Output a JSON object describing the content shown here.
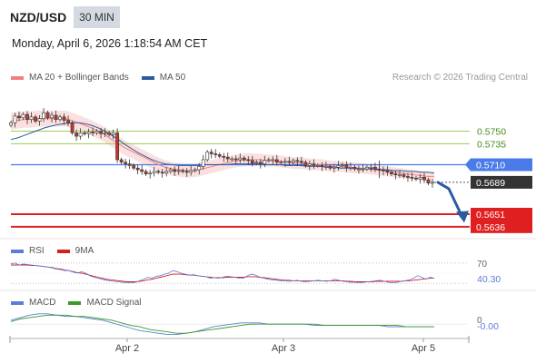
{
  "header": {
    "symbol": "NZD/USD",
    "interval": "30 MIN",
    "datetime": "Monday, April 6, 2026 1:18:54 AM CET"
  },
  "copyright": "Research © 2026 Trading Central",
  "colors": {
    "bollinger": "#f08080",
    "ma50": "#2c5aa0",
    "resistance": "#9acd59",
    "pivot": "#4a7be8",
    "support": "#e02020",
    "current": "#333333",
    "rsi": "#5b7fd6",
    "rsi_ma": "#d62020",
    "macd": "#5b7fd6",
    "macd_signal": "#3a9a2a",
    "up_candle": "#ffffff",
    "down_candle": "#c0392b"
  },
  "chart_data": [
    {
      "type": "candlestick",
      "legend": [
        {
          "name": "MA 20 + Bollinger Bands",
          "color": "#f08080"
        },
        {
          "name": "MA 50",
          "color": "#2c5aa0"
        }
      ],
      "ylim": [
        0.5625,
        0.5795
      ],
      "levels": [
        {
          "value": 0.575,
          "label": "0.5750",
          "kind": "resistance"
        },
        {
          "value": 0.5735,
          "label": "0.5735",
          "kind": "resistance"
        },
        {
          "value": 0.571,
          "label": "0.5710",
          "kind": "pivot"
        },
        {
          "value": 0.5689,
          "label": "0.5689",
          "kind": "current"
        },
        {
          "value": 0.5651,
          "label": "0.5651",
          "kind": "support"
        },
        {
          "value": 0.5636,
          "label": "0.5636",
          "kind": "support"
        }
      ],
      "x_ticks": [
        "Apr 2",
        "Apr 3",
        "Apr 5"
      ],
      "close_path": [
        0.576,
        0.5768,
        0.5766,
        0.577,
        0.5764,
        0.5767,
        0.5762,
        0.5765,
        0.5772,
        0.5766,
        0.5769,
        0.5764,
        0.5767,
        0.5763,
        0.576,
        0.5748,
        0.5744,
        0.5748,
        0.5747,
        0.5749,
        0.5748,
        0.575,
        0.5747,
        0.5748,
        0.5746,
        0.5748,
        0.5716,
        0.5713,
        0.5711,
        0.5709,
        0.5706,
        0.5704,
        0.5702,
        0.5699,
        0.57,
        0.5702,
        0.5701,
        0.57,
        0.5702,
        0.5704,
        0.5702,
        0.5703,
        0.5702,
        0.5701,
        0.5703,
        0.5704,
        0.5708,
        0.5716,
        0.5725,
        0.5723,
        0.5722,
        0.572,
        0.5719,
        0.5717,
        0.5717,
        0.5716,
        0.5718,
        0.5716,
        0.5715,
        0.5712,
        0.5713,
        0.5711,
        0.5715,
        0.5716,
        0.5716,
        0.5713,
        0.5713,
        0.5714,
        0.5713,
        0.5715,
        0.5714,
        0.5713,
        0.5709,
        0.5711,
        0.5709,
        0.5709,
        0.5708,
        0.5708,
        0.5706,
        0.5707,
        0.5709,
        0.571,
        0.5707,
        0.5707,
        0.5705,
        0.5705,
        0.5705,
        0.5707,
        0.5707,
        0.5705,
        0.5704,
        0.5703,
        0.5701,
        0.5699,
        0.5698,
        0.5698,
        0.5696,
        0.5695,
        0.5694,
        0.5693,
        0.5695,
        0.5692,
        0.5688,
        0.5689
      ],
      "ma20": [
        0.5762,
        0.5763,
        0.5764,
        0.5764,
        0.5765,
        0.5765,
        0.5765,
        0.5765,
        0.5765,
        0.5763,
        0.576,
        0.5757,
        0.5754,
        0.575,
        0.5746,
        0.574,
        0.5735,
        0.573,
        0.5726,
        0.5722,
        0.5718,
        0.5714,
        0.571,
        0.5707,
        0.5705,
        0.5704,
        0.5703,
        0.5703,
        0.5704,
        0.5706,
        0.5708,
        0.571,
        0.5712,
        0.5714,
        0.5715,
        0.5716,
        0.5716,
        0.5716,
        0.5715,
        0.5715,
        0.5714,
        0.5713,
        0.5712,
        0.5712,
        0.5711,
        0.571,
        0.571,
        0.5709,
        0.5708,
        0.5708,
        0.5707,
        0.5706,
        0.5706,
        0.5705,
        0.5704,
        0.5703,
        0.5702,
        0.5701,
        0.57,
        0.5699,
        0.5698,
        0.5697,
        0.5696,
        0.5696
      ],
      "ma50": [
        0.574,
        0.5742,
        0.5745,
        0.5748,
        0.5751,
        0.5754,
        0.5756,
        0.5758,
        0.5759,
        0.576,
        0.576,
        0.5759,
        0.5757,
        0.5754,
        0.575,
        0.5745,
        0.574,
        0.5734,
        0.5729,
        0.5724,
        0.572,
        0.5716,
        0.5713,
        0.5711,
        0.571,
        0.5709,
        0.5709,
        0.5709,
        0.5709,
        0.571,
        0.571,
        0.571,
        0.571,
        0.5711,
        0.5711,
        0.5711,
        0.5711,
        0.5711,
        0.571,
        0.571,
        0.571,
        0.5709,
        0.5709,
        0.5709,
        0.5708,
        0.5708,
        0.5708,
        0.5707,
        0.5707,
        0.5706,
        0.5706,
        0.5706,
        0.5705,
        0.5705,
        0.5705,
        0.5704,
        0.5704,
        0.5703,
        0.5703,
        0.5702,
        0.5702,
        0.5701,
        0.5701,
        0.57
      ]
    },
    {
      "type": "line",
      "legend": [
        {
          "name": "RSI",
          "color": "#5b7fd6"
        },
        {
          "name": "9MA",
          "color": "#d62020"
        }
      ],
      "ylim": [
        25,
        75
      ],
      "levels": [
        70,
        30
      ],
      "value_label": "40.30",
      "label_70": "70",
      "rsi": [
        68,
        70,
        66,
        68,
        67,
        66,
        65,
        64,
        63,
        62,
        60,
        58,
        57,
        55,
        55,
        52,
        50,
        53,
        50,
        45,
        42,
        40,
        38,
        36,
        35,
        34,
        33,
        32,
        31,
        31,
        32,
        35,
        38,
        42,
        40,
        44,
        45,
        48,
        50,
        55,
        53,
        50,
        48,
        46,
        47,
        45,
        44,
        43,
        40,
        41,
        40,
        42,
        44,
        43,
        42,
        40,
        40,
        45,
        48,
        46,
        42,
        40,
        38,
        37,
        36,
        35,
        35,
        34,
        35,
        36,
        34,
        33,
        34,
        35,
        36,
        35,
        34,
        35,
        38,
        36,
        34,
        33,
        32,
        32,
        31,
        32,
        33,
        34,
        35,
        36,
        34,
        32,
        31,
        32,
        34,
        35,
        37,
        40,
        45,
        42,
        38,
        42,
        40
      ],
      "ma9": [
        66,
        66,
        66,
        66,
        66,
        65,
        65,
        64,
        63,
        62,
        61,
        59,
        58,
        56,
        55,
        53,
        51,
        50,
        48,
        46,
        44,
        42,
        40,
        38,
        37,
        36,
        35,
        34,
        33,
        33,
        33,
        34,
        35,
        37,
        38,
        40,
        42,
        44,
        46,
        48,
        48,
        48,
        47,
        46,
        46,
        45,
        44,
        43,
        42,
        41,
        41,
        41,
        42,
        42,
        42,
        42,
        42,
        43,
        43,
        43,
        42,
        41,
        40,
        39,
        38,
        37,
        36,
        36,
        35,
        35,
        35,
        35,
        35,
        35,
        35,
        35,
        35,
        35,
        35,
        35,
        35,
        34,
        34,
        33,
        33,
        33,
        33,
        33,
        34,
        34,
        34,
        34,
        34,
        34,
        34,
        35,
        35,
        36,
        37,
        38,
        39,
        40,
        40
      ]
    },
    {
      "type": "line",
      "legend": [
        {
          "name": "MACD",
          "color": "#5b7fd6"
        },
        {
          "name": "MACD Signal",
          "color": "#3a9a2a"
        }
      ],
      "ylim": [
        -0.0009,
        0.001
      ],
      "zero_label": "0",
      "value_label": "-0.00",
      "macd": [
        0.0003,
        0.0005,
        0.0007,
        0.0008,
        0.0008,
        0.0007,
        0.0006,
        0.0006,
        0.0005,
        0.0004,
        0.0003,
        0.0001,
        -0.0001,
        -0.0003,
        -0.0005,
        -0.0006,
        -0.0007,
        -0.0008,
        -0.0008,
        -0.0007,
        -0.0006,
        -0.0004,
        -0.0002,
        -0.0001,
        0.0,
        0.0001,
        0.0001,
        0.0001,
        0.0,
        0.0,
        0.0,
        0.0,
        0.0,
        -0.0001,
        -0.0001,
        -0.0001,
        -0.0001,
        -0.0001,
        -0.0001,
        -0.0001,
        -0.0001,
        -0.0002,
        -0.0002,
        -0.0002,
        -0.0002,
        -0.0002,
        -0.0002
      ],
      "signal": [
        0.0002,
        0.0004,
        0.0005,
        0.0006,
        0.0007,
        0.0007,
        0.0007,
        0.0006,
        0.0006,
        0.0005,
        0.0004,
        0.0003,
        0.0001,
        -0.0001,
        -0.0002,
        -0.0004,
        -0.0005,
        -0.0006,
        -0.0007,
        -0.0007,
        -0.0006,
        -0.0005,
        -0.0004,
        -0.0003,
        -0.0002,
        -0.0001,
        -0.0,
        0.0,
        0.0,
        0.0,
        0.0,
        0.0,
        0.0,
        -0.0,
        -0.0001,
        -0.0001,
        -0.0001,
        -0.0001,
        -0.0001,
        -0.0001,
        -0.0001,
        -0.0001,
        -0.0001,
        -0.0002,
        -0.0002,
        -0.0002,
        -0.0002
      ]
    }
  ]
}
